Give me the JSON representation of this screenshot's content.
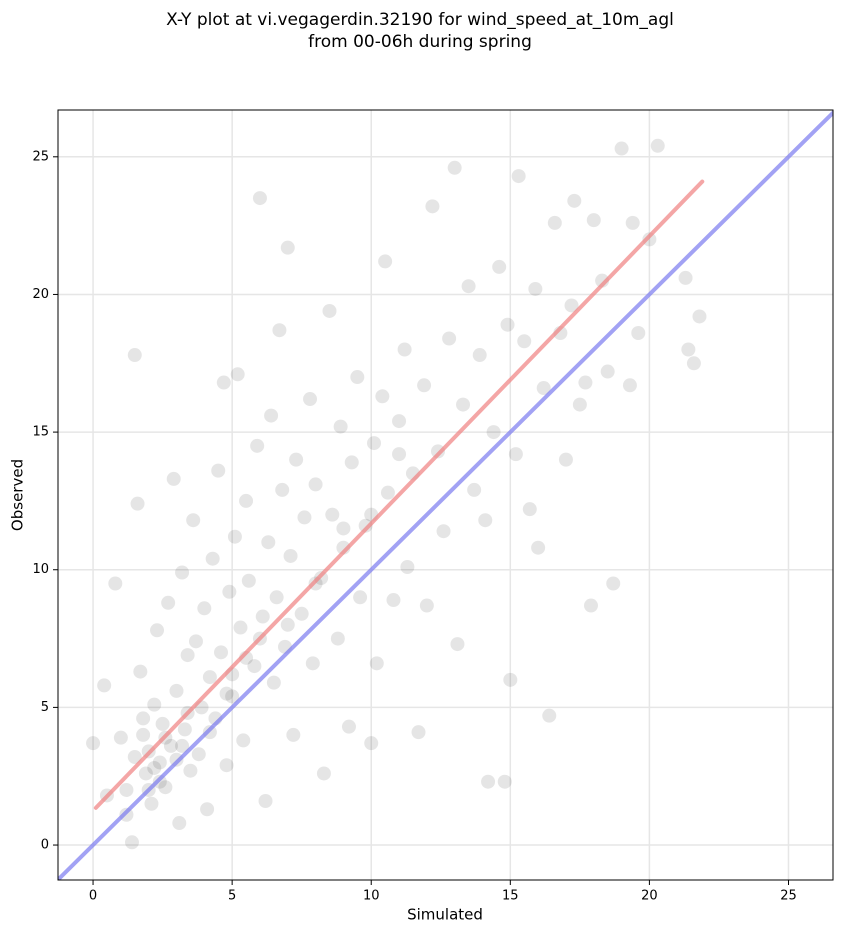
{
  "chart_data": {
    "type": "scatter",
    "title": [
      "X-Y plot at vi.vegagerdin.32190 for wind_speed_at_10m_agl",
      "from 00-06h during spring"
    ],
    "x_label": "Simulated",
    "y_label": "Observed",
    "xlim": [
      -1.26,
      26.6
    ],
    "ylim": [
      -1.27,
      26.7
    ],
    "xticks": [
      0,
      5,
      10,
      15,
      20,
      25
    ],
    "yticks": [
      0,
      5,
      10,
      15,
      20,
      25
    ],
    "grid": true,
    "series": [
      {
        "color": "#000000",
        "x": [
          0.0,
          0.4,
          0.5,
          0.8,
          1.0,
          1.2,
          1.4,
          1.5,
          1.6,
          1.7,
          1.8,
          1.9,
          2.0,
          2.1,
          2.2,
          2.3,
          2.4,
          2.5,
          2.6,
          2.7,
          2.8,
          2.9,
          3.0,
          3.1,
          3.2,
          3.3,
          3.4,
          3.5,
          3.6,
          3.7,
          3.8,
          3.9,
          4.0,
          4.1,
          4.2,
          4.3,
          4.4,
          4.5,
          4.6,
          4.7,
          4.8,
          4.9,
          5.0,
          5.1,
          5.2,
          5.3,
          5.4,
          5.5,
          5.6,
          5.8,
          5.9,
          6.0,
          6.1,
          6.2,
          6.3,
          6.4,
          6.5,
          6.6,
          6.7,
          6.8,
          6.9,
          7.0,
          7.1,
          7.2,
          7.3,
          7.5,
          7.6,
          7.8,
          7.9,
          8.0,
          8.2,
          8.3,
          8.5,
          8.6,
          8.8,
          8.9,
          9.0,
          9.2,
          9.3,
          9.5,
          9.6,
          9.8,
          10.0,
          10.1,
          10.2,
          10.4,
          10.5,
          10.6,
          10.8,
          11.0,
          11.2,
          11.3,
          11.5,
          11.7,
          11.9,
          12.0,
          12.2,
          12.4,
          12.6,
          12.8,
          13.0,
          13.1,
          13.3,
          13.5,
          13.7,
          13.9,
          14.1,
          14.2,
          14.4,
          14.6,
          14.8,
          14.9,
          15.0,
          15.2,
          15.3,
          15.5,
          15.7,
          15.9,
          16.0,
          16.2,
          16.4,
          16.6,
          16.8,
          17.0,
          17.2,
          17.3,
          17.5,
          17.7,
          17.9,
          18.0,
          18.3,
          18.5,
          18.7,
          19.0,
          19.3,
          19.4,
          19.6,
          20.0,
          20.3,
          21.3,
          21.4,
          21.6,
          21.8,
          1.5,
          2.2,
          2.6,
          3.0,
          1.8,
          2.4,
          3.4,
          4.2,
          5.0,
          6.0,
          7.0,
          8.0,
          9.0,
          10.0,
          11.0,
          4.8,
          5.5,
          3.2,
          2.0,
          1.2
        ],
        "y": [
          3.7,
          5.8,
          1.8,
          9.5,
          3.9,
          2.0,
          0.1,
          17.8,
          12.4,
          6.3,
          4.0,
          2.6,
          3.4,
          1.5,
          5.1,
          7.8,
          3.0,
          4.4,
          2.1,
          8.8,
          3.6,
          13.3,
          5.6,
          0.8,
          9.9,
          4.2,
          6.9,
          2.7,
          11.8,
          7.4,
          3.3,
          5.0,
          8.6,
          1.3,
          6.1,
          10.4,
          4.6,
          13.6,
          7.0,
          16.8,
          2.9,
          9.2,
          5.4,
          11.2,
          17.1,
          7.9,
          3.8,
          12.5,
          9.6,
          6.5,
          14.5,
          23.5,
          8.3,
          1.6,
          11.0,
          15.6,
          5.9,
          9.0,
          18.7,
          12.9,
          7.2,
          21.7,
          10.5,
          4.0,
          14.0,
          8.4,
          11.9,
          16.2,
          6.6,
          13.1,
          9.7,
          2.6,
          19.4,
          12.0,
          7.5,
          15.2,
          10.8,
          4.3,
          13.9,
          17.0,
          9.0,
          11.6,
          3.7,
          14.6,
          6.6,
          16.3,
          21.2,
          12.8,
          8.9,
          15.4,
          18.0,
          10.1,
          13.5,
          4.1,
          16.7,
          8.7,
          23.2,
          14.3,
          11.4,
          18.4,
          24.6,
          7.3,
          16.0,
          20.3,
          12.9,
          17.8,
          11.8,
          2.3,
          15.0,
          21.0,
          2.3,
          18.9,
          6.0,
          14.2,
          24.3,
          18.3,
          12.2,
          20.2,
          10.8,
          16.6,
          4.7,
          22.6,
          18.6,
          14.0,
          19.6,
          23.4,
          16.0,
          16.8,
          8.7,
          22.7,
          20.5,
          17.2,
          9.5,
          25.3,
          16.7,
          22.6,
          18.6,
          22.0,
          25.4,
          20.6,
          18.0,
          17.5,
          19.2,
          3.2,
          2.8,
          3.9,
          3.1,
          4.6,
          2.3,
          4.8,
          4.1,
          6.2,
          7.5,
          8.0,
          9.5,
          11.5,
          12.0,
          14.2,
          5.5,
          6.8,
          3.6,
          2.0,
          1.1
        ]
      }
    ],
    "lines": [
      {
        "color": "#f08080",
        "x": [
          0.1,
          21.9
        ],
        "y": [
          1.35,
          24.1
        ]
      },
      {
        "color": "#7b7bf0",
        "x": [
          -1.26,
          26.6
        ],
        "y": [
          -1.26,
          26.6
        ]
      }
    ]
  }
}
